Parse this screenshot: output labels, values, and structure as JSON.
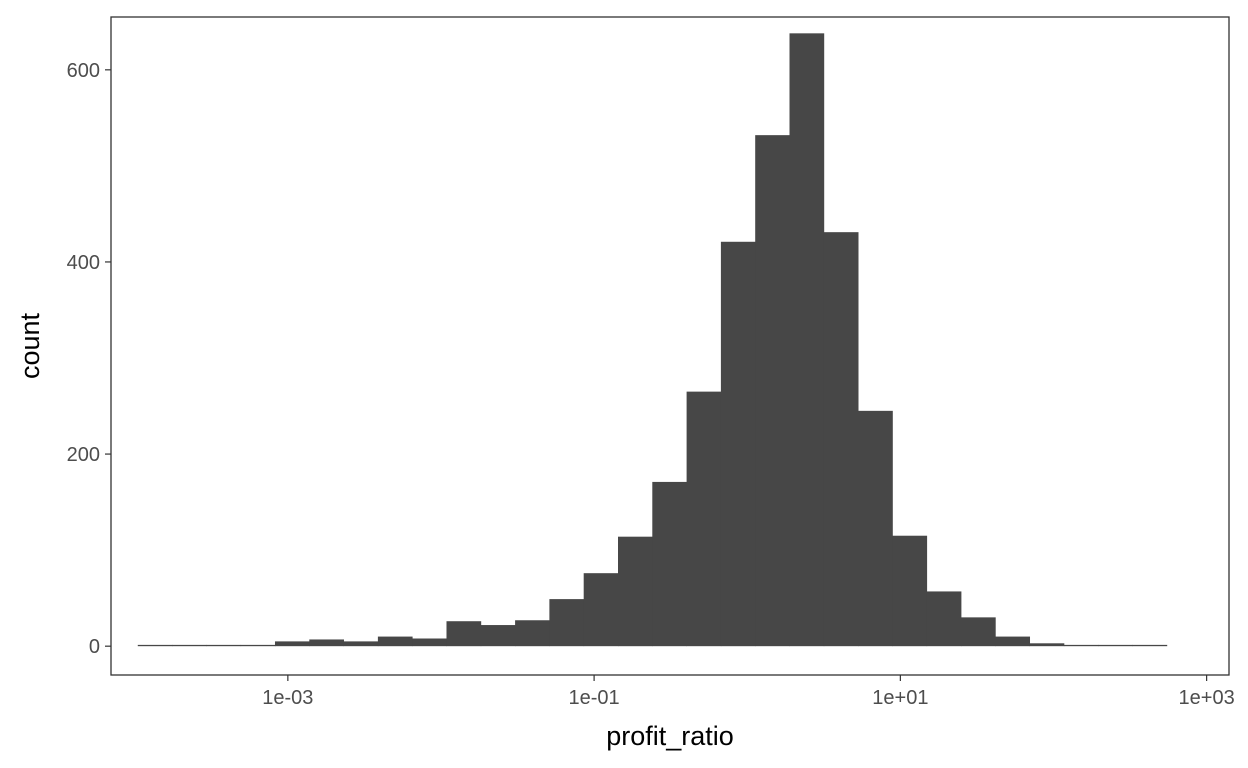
{
  "chart_data": {
    "type": "bar",
    "title": "",
    "xlabel": "profit_ratio",
    "ylabel": "count",
    "x_scale": "log10",
    "xlim": [
      7e-05,
      1400
    ],
    "ylim": [
      -30,
      655
    ],
    "grid": false,
    "x_ticks": [
      {
        "value": 0.001,
        "label": "1e-03"
      },
      {
        "value": 0.1,
        "label": "1e-01"
      },
      {
        "value": 10,
        "label": "1e+01"
      },
      {
        "value": 1000,
        "label": "1e+03"
      }
    ],
    "y_ticks": [
      {
        "value": 0,
        "label": "0"
      },
      {
        "value": 200,
        "label": "200"
      },
      {
        "value": 400,
        "label": "400"
      },
      {
        "value": 600,
        "label": "600"
      }
    ],
    "bin_log10_start": -3.98,
    "bin_log10_width": 0.224,
    "values": [
      1,
      1,
      0,
      1,
      5,
      7,
      5,
      10,
      8,
      26,
      22,
      27,
      49,
      76,
      114,
      171,
      265,
      421,
      532,
      638,
      431,
      245,
      115,
      57,
      30,
      10,
      3,
      1,
      1,
      1
    ],
    "colors": {
      "bar": "#474747",
      "axis": "#333333",
      "tick_text": "#4d4d4d",
      "title_text": "#000000"
    }
  }
}
